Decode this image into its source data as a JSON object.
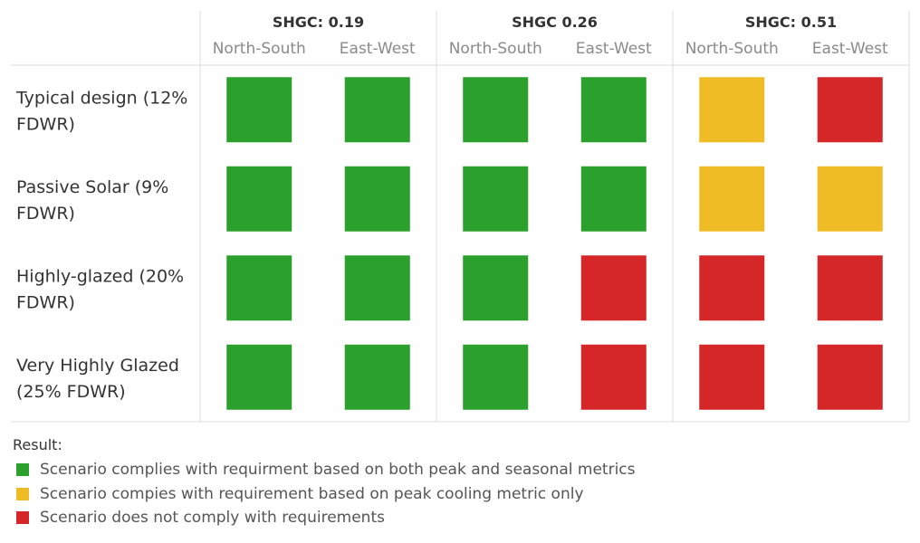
{
  "chart_data": {
    "type": "heatmap",
    "groups": [
      {
        "label": "SHGC: 0.19",
        "columns": [
          "North-South",
          "East-West"
        ]
      },
      {
        "label": "SHGC 0.26",
        "columns": [
          "North-South",
          "East-West"
        ]
      },
      {
        "label": "SHGC: 0.51",
        "columns": [
          "North-South",
          "East-West"
        ]
      }
    ],
    "rows": [
      {
        "label_lines": [
          "Typical design (12%",
          "FDWR)"
        ],
        "values": [
          "complies",
          "complies",
          "complies",
          "complies",
          "peak-only",
          "not-comply"
        ]
      },
      {
        "label_lines": [
          "Passive Solar (9%",
          "FDWR)"
        ],
        "values": [
          "complies",
          "complies",
          "complies",
          "complies",
          "peak-only",
          "peak-only"
        ]
      },
      {
        "label_lines": [
          "Highly-glazed (20%",
          "FDWR)"
        ],
        "values": [
          "complies",
          "complies",
          "complies",
          "not-comply",
          "not-comply",
          "not-comply"
        ]
      },
      {
        "label_lines": [
          "Very Highly Glazed",
          "(25% FDWR)"
        ],
        "values": [
          "complies",
          "complies",
          "complies",
          "not-comply",
          "not-comply",
          "not-comply"
        ]
      }
    ],
    "categories": {
      "complies": {
        "color": "#2ca02c"
      },
      "peak-only": {
        "color": "#f0bc26"
      },
      "not-comply": {
        "color": "#d62728"
      }
    }
  },
  "legend": {
    "title": "Result:",
    "items": [
      {
        "key": "complies",
        "label": "Scenario complies with requirment based on both peak and seasonal metrics",
        "color": "#2ca02c"
      },
      {
        "key": "peak-only",
        "label": "Scenario compies with requirement based on peak cooling metric only",
        "color": "#f0bc26"
      },
      {
        "key": "not-comply",
        "label": "Scenario does not comply with requirements",
        "color": "#d62728"
      }
    ]
  }
}
